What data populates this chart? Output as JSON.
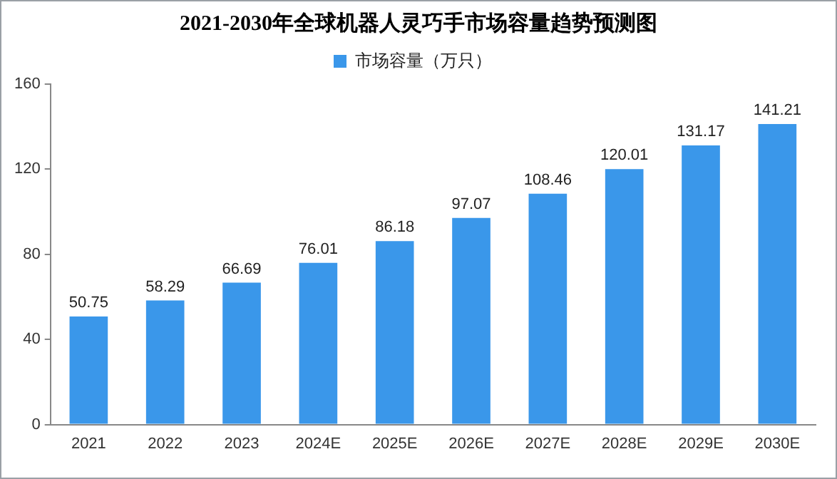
{
  "chart_data": {
    "type": "bar",
    "title": "2021-2030年全球机器人灵巧手市场容量趋势预测图",
    "categories": [
      "2021",
      "2022",
      "2023",
      "2024E",
      "2025E",
      "2026E",
      "2027E",
      "2028E",
      "2029E",
      "2030E"
    ],
    "series": [
      {
        "name": "市场容量（万只）",
        "color": "#3a97ea",
        "values": [
          50.75,
          58.29,
          66.69,
          76.01,
          86.18,
          97.07,
          108.46,
          120.01,
          131.17,
          141.21
        ]
      }
    ],
    "ylim": [
      0,
      160
    ],
    "yticks": [
      0,
      40,
      80,
      120,
      160
    ],
    "grid": false,
    "legend": "top",
    "data_labels": true
  }
}
